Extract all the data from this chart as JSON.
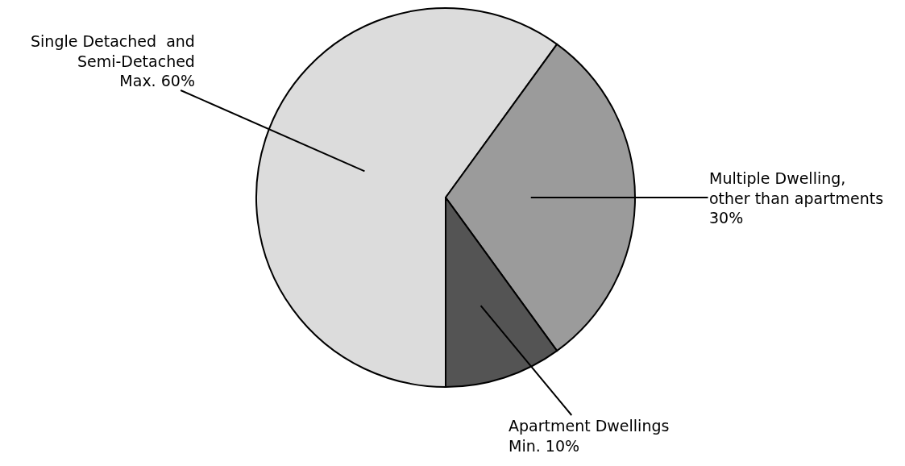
{
  "chart_data": {
    "type": "pie",
    "categories": [
      "Single Detached  and\nSemi-Detached",
      "Multiple Dwelling,\nother than apartments",
      "Apartment Dwellings"
    ],
    "values": [
      60,
      30,
      10
    ],
    "value_labels": [
      "Max. 60%",
      "30%",
      "Min. 10%"
    ],
    "colors": [
      "#dcdcdc",
      "#9b9b9b",
      "#545454"
    ],
    "legend": false
  }
}
